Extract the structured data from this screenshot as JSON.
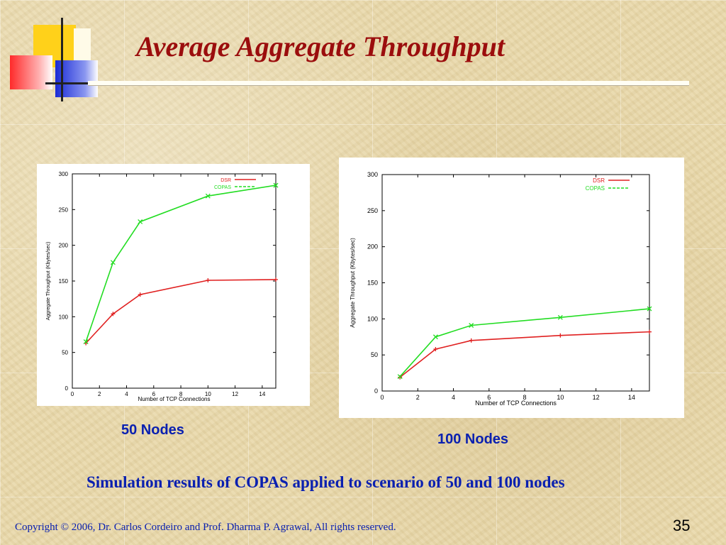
{
  "slide": {
    "title": "Average Aggregate Throughput",
    "caption_50": "50 Nodes",
    "caption_100": "100 Nodes",
    "simulation_caption": "Simulation results of COPAS applied to scenario of 50 and 100 nodes",
    "footer": "Copyright © 2006, Dr. Carlos Cordeiro and  Prof. Dharma P. Agrawal,  All rights reserved.",
    "page_number": "35"
  },
  "chart_data": [
    {
      "type": "line",
      "xlabel": "Number of TCP Connections",
      "ylabel": "Aggregate Throughput (Kbytes/sec)",
      "xlim": [
        0,
        15
      ],
      "ylim": [
        0,
        300
      ],
      "xticks": [
        0,
        2,
        4,
        6,
        8,
        10,
        12,
        14
      ],
      "yticks": [
        0,
        50,
        100,
        150,
        200,
        250,
        300
      ],
      "legend_position": "top-right",
      "grid": false,
      "series": [
        {
          "name": "DSR",
          "color": "#e02020",
          "marker": "+",
          "x": [
            1,
            3,
            5,
            10,
            15
          ],
          "y": [
            63,
            104,
            131,
            151,
            152
          ]
        },
        {
          "name": "COPAS",
          "color": "#22dd22",
          "marker": "x",
          "x": [
            1,
            3,
            5,
            10,
            15
          ],
          "y": [
            65,
            176,
            233,
            269,
            284
          ]
        }
      ]
    },
    {
      "type": "line",
      "xlabel": "Number of TCP Connections",
      "ylabel": "Aggregate Throughput (Kbytes/sec)",
      "xlim": [
        0,
        15
      ],
      "ylim": [
        0,
        300
      ],
      "xticks": [
        0,
        2,
        4,
        6,
        8,
        10,
        12,
        14
      ],
      "yticks": [
        0,
        50,
        100,
        150,
        200,
        250,
        300
      ],
      "legend_position": "top-right",
      "grid": false,
      "series": [
        {
          "name": "DSR",
          "color": "#e02020",
          "marker": "+",
          "x": [
            1,
            3,
            5,
            10,
            15
          ],
          "y": [
            19,
            58,
            70,
            77,
            82
          ]
        },
        {
          "name": "COPAS",
          "color": "#22dd22",
          "marker": "x",
          "x": [
            1,
            3,
            5,
            10,
            15
          ],
          "y": [
            20,
            75,
            91,
            102,
            114
          ]
        }
      ]
    }
  ]
}
